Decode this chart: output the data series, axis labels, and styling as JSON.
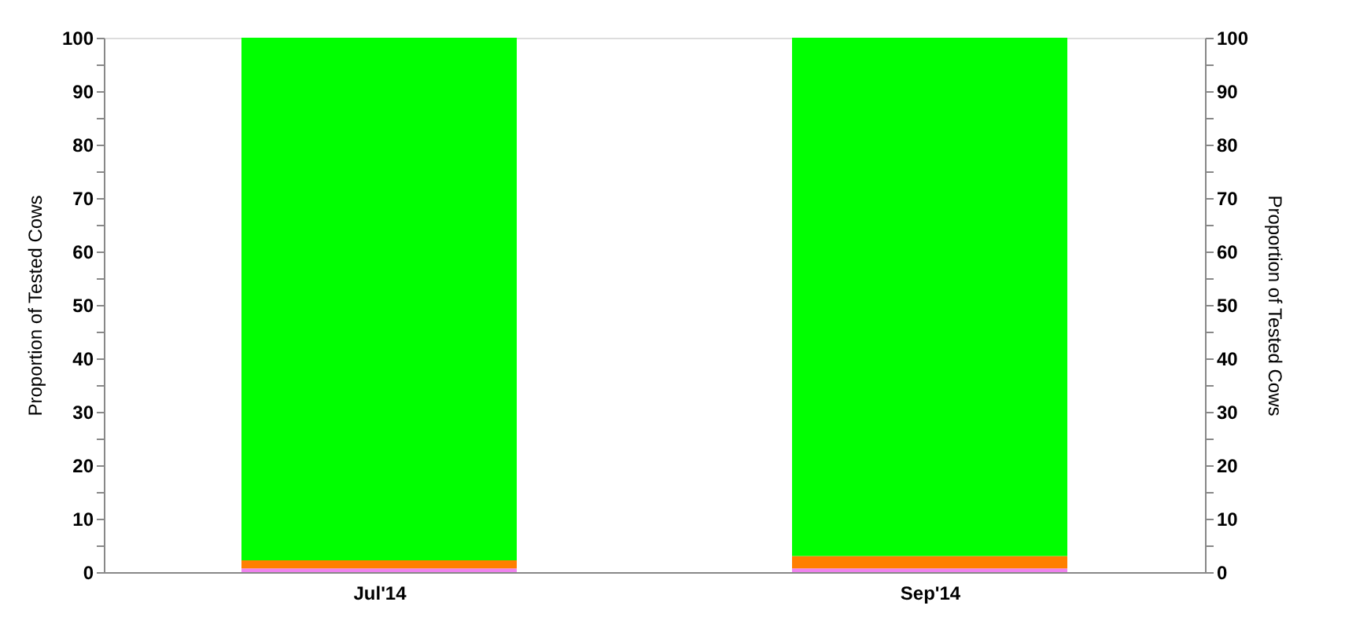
{
  "chart_data": {
    "type": "bar",
    "stacked": true,
    "ylabel": "Proportion of Tested Cows",
    "y2label": "Proportion of Tested Cows",
    "categories": [
      "Jul'14",
      "Sep'14"
    ],
    "series": [
      {
        "color": "#ee82ee",
        "values": [
          0.7,
          0.7
        ]
      },
      {
        "color": "#ff7f00",
        "values": [
          1.5,
          2.3
        ]
      },
      {
        "color": "#00ff00",
        "values": [
          97.8,
          97.0
        ]
      }
    ],
    "ylim": [
      0,
      100
    ],
    "yticks": [
      0,
      {
        "value": 5,
        "label": null
      },
      10,
      {
        "value": 15,
        "label": null
      },
      20,
      {
        "value": 25,
        "label": null
      },
      30,
      {
        "value": 35,
        "label": null
      },
      40,
      {
        "value": 45,
        "label": null
      },
      50,
      {
        "value": 55,
        "label": null
      },
      60,
      {
        "value": 65,
        "label": null
      },
      70,
      {
        "value": 75,
        "label": null
      },
      80,
      {
        "value": 85,
        "label": null
      },
      90,
      {
        "value": 95,
        "label": null
      },
      100
    ],
    "y2lim": [
      0,
      100
    ],
    "y2ticks": [
      0,
      {
        "value": 5,
        "label": null
      },
      10,
      {
        "value": 15,
        "label": null
      },
      20,
      {
        "value": 25,
        "label": null
      },
      30,
      {
        "value": 35,
        "label": null
      },
      40,
      {
        "value": 45,
        "label": null
      },
      50,
      {
        "value": 55,
        "label": null
      },
      60,
      {
        "value": 65,
        "label": null
      },
      70,
      {
        "value": 75,
        "label": null
      },
      80,
      {
        "value": 85,
        "label": null
      },
      90,
      {
        "value": 95,
        "label": null
      },
      100
    ],
    "grid": false,
    "legend": false
  }
}
